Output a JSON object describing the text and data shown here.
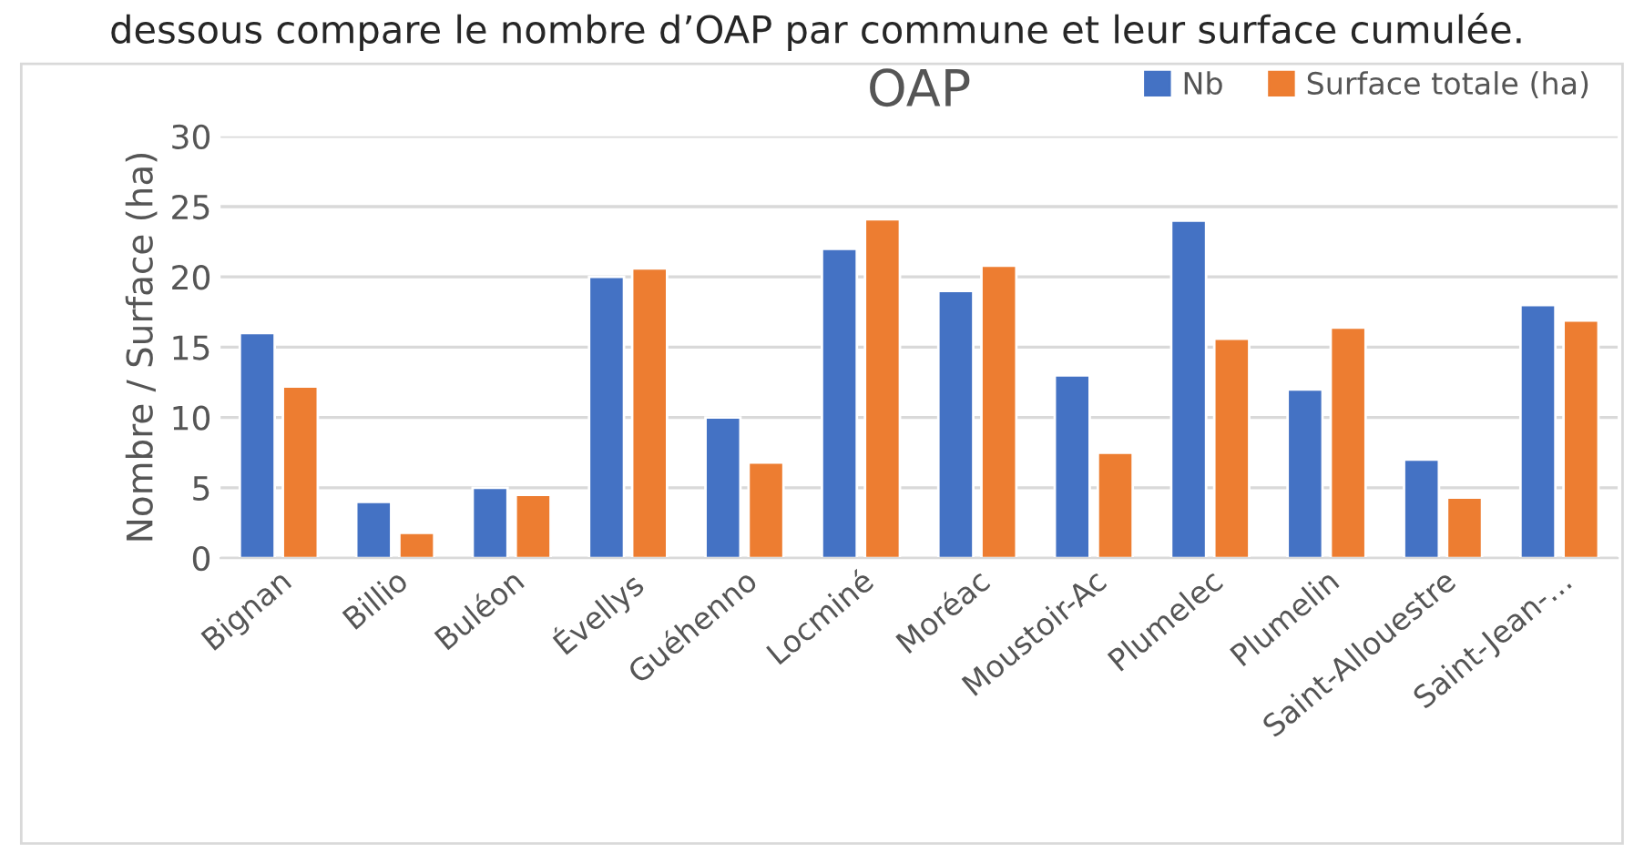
{
  "chart_data": {
    "type": "bar",
    "title": "OAP",
    "ylabel": "Nombre / Surface (ha)",
    "annotations": [
      "dessous compare le nombre d’OAP par commune et leur surface cumulée."
    ],
    "categories": [
      "Bignan",
      "Billio",
      "Buléon",
      "Évellys",
      "Guéhenno",
      "Locminé",
      "Moréac",
      "Moustoir-Ac",
      "Plumelec",
      "Plumelin",
      "Saint-Allouestre",
      "Saint-Jean-..."
    ],
    "series": [
      {
        "name": "Nb",
        "color": "#4472c4",
        "values": [
          16,
          4,
          5,
          20,
          10,
          22,
          19,
          13,
          24,
          12,
          7,
          18
        ]
      },
      {
        "name": "Surface totale (ha)",
        "color": "#ed7d31",
        "values": [
          12.2,
          1.8,
          4.5,
          20.6,
          6.8,
          24.1,
          20.8,
          7.5,
          15.6,
          16.4,
          4.3,
          16.9
        ]
      }
    ],
    "ylim": [
      0,
      30
    ],
    "yticks": [
      0,
      5,
      10,
      15,
      20,
      25,
      30
    ],
    "grid": "y",
    "legend": "top right"
  }
}
